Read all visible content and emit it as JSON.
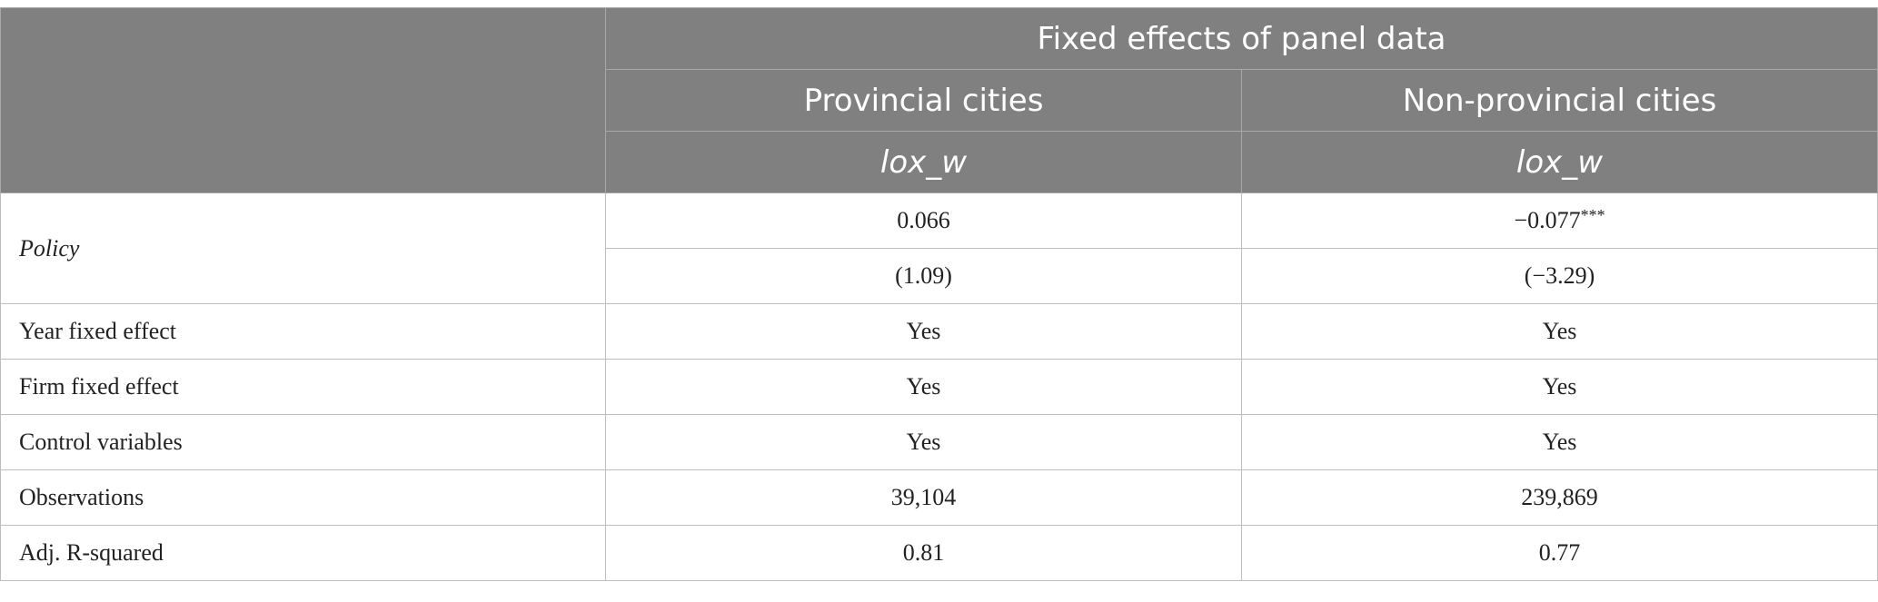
{
  "header": {
    "group_title": "Fixed effects of panel data",
    "columns": [
      "Provincial cities",
      "Non-provincial cities"
    ],
    "dependent_var": [
      "lox_w",
      "lox_w"
    ]
  },
  "rows": {
    "policy": {
      "label": "Policy",
      "coef": [
        "0.066",
        "−0.077"
      ],
      "coef_stars": [
        "",
        "***"
      ],
      "tstat": [
        "(1.09)",
        "(−3.29)"
      ]
    },
    "year_fe": {
      "label": "Year fixed effect",
      "values": [
        "Yes",
        "Yes"
      ]
    },
    "firm_fe": {
      "label": "Firm fixed effect",
      "values": [
        "Yes",
        "Yes"
      ]
    },
    "controls": {
      "label": "Control variables",
      "values": [
        "Yes",
        "Yes"
      ]
    },
    "observations": {
      "label": "Observations",
      "values": [
        "39,104",
        "239,869"
      ]
    },
    "adj_r2": {
      "label": "Adj. R-squared",
      "values": [
        "0.81",
        "0.77"
      ]
    }
  },
  "colors": {
    "header_bg": "#808080",
    "header_text": "#ffffff",
    "grid": "#bdbdbd"
  }
}
